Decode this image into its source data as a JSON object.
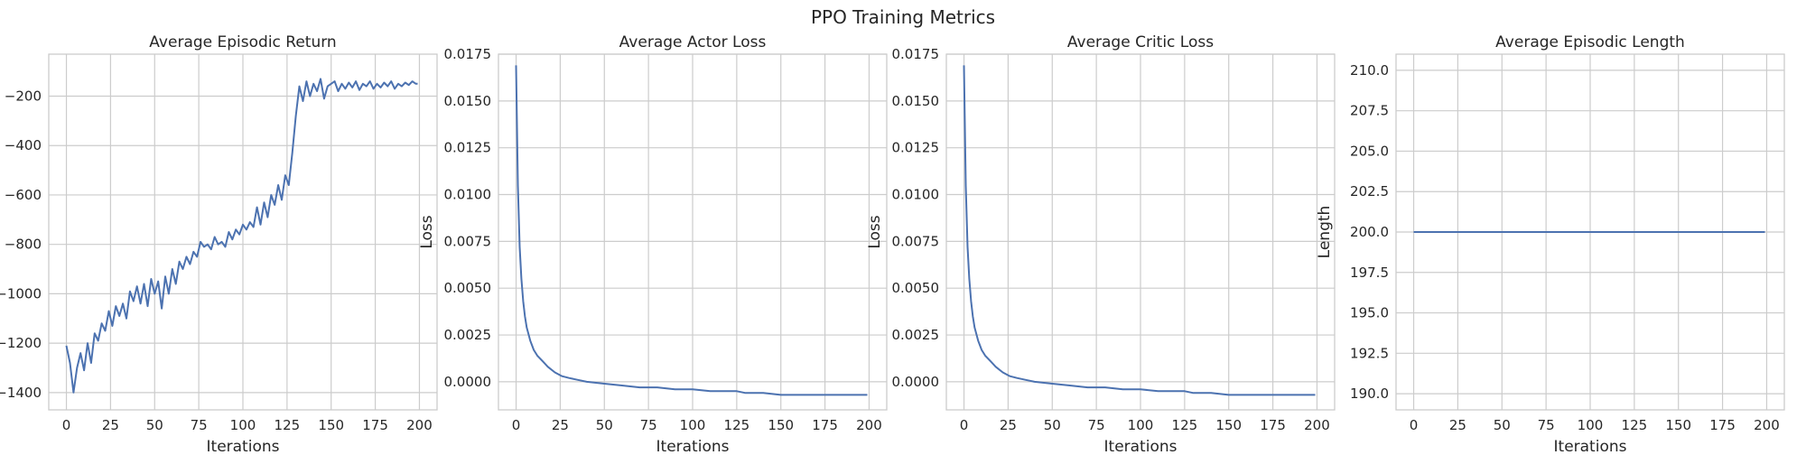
{
  "chart_data": {
    "title": "PPO Training Metrics",
    "charts": [
      {
        "type": "line",
        "title": "Average Episodic Return",
        "xlabel": "Iterations",
        "ylabel": "",
        "xlim": [
          -10,
          210
        ],
        "ylim": [
          -1470,
          -30
        ],
        "xticks": [
          0,
          25,
          50,
          75,
          100,
          125,
          150,
          175,
          200
        ],
        "yticks": [
          -1400,
          -1200,
          -1000,
          -800,
          -600,
          -400,
          -200
        ],
        "ytick_labels": [
          "-1400",
          "-1200",
          "-1000",
          "-800",
          "-600",
          "-400",
          "-200"
        ],
        "grid": true,
        "series": [
          {
            "name": "",
            "color": "#4c72b0",
            "x": [
              0,
              2,
              4,
              6,
              8,
              10,
              12,
              14,
              16,
              18,
              20,
              22,
              24,
              26,
              28,
              30,
              32,
              34,
              36,
              38,
              40,
              42,
              44,
              46,
              48,
              50,
              52,
              54,
              56,
              58,
              60,
              62,
              64,
              66,
              68,
              70,
              72,
              74,
              76,
              78,
              80,
              82,
              84,
              86,
              88,
              90,
              92,
              94,
              96,
              98,
              100,
              102,
              104,
              106,
              108,
              110,
              112,
              114,
              116,
              118,
              120,
              122,
              124,
              126,
              128,
              130,
              132,
              134,
              136,
              138,
              140,
              142,
              144,
              146,
              148,
              150,
              152,
              154,
              156,
              158,
              160,
              162,
              164,
              166,
              168,
              170,
              172,
              174,
              176,
              178,
              180,
              182,
              184,
              186,
              188,
              190,
              192,
              194,
              196,
              198,
              199
            ],
            "y": [
              -1210,
              -1280,
              -1400,
              -1300,
              -1240,
              -1310,
              -1200,
              -1280,
              -1160,
              -1190,
              -1120,
              -1150,
              -1070,
              -1130,
              -1050,
              -1090,
              -1040,
              -1100,
              -990,
              -1030,
              -970,
              -1040,
              -960,
              -1050,
              -940,
              -1000,
              -950,
              -1060,
              -930,
              -1000,
              -900,
              -960,
              -870,
              -900,
              -850,
              -880,
              -830,
              -850,
              -790,
              -810,
              -800,
              -820,
              -770,
              -800,
              -790,
              -810,
              -750,
              -780,
              -740,
              -760,
              -720,
              -740,
              -710,
              -730,
              -650,
              -720,
              -630,
              -690,
              -600,
              -640,
              -560,
              -620,
              -520,
              -560,
              -430,
              -280,
              -160,
              -220,
              -140,
              -200,
              -150,
              -180,
              -130,
              -210,
              -160,
              -150,
              -140,
              -180,
              -150,
              -170,
              -145,
              -165,
              -140,
              -175,
              -150,
              -160,
              -140,
              -170,
              -150,
              -165,
              -145,
              -160,
              -140,
              -170,
              -150,
              -160,
              -145,
              -155,
              -140,
              -150,
              -150
            ]
          }
        ]
      },
      {
        "type": "line",
        "title": "Average Actor Loss",
        "xlabel": "Iterations",
        "ylabel": "Loss",
        "xlim": [
          -10,
          210
        ],
        "ylim": [
          -0.0015,
          0.0175
        ],
        "xticks": [
          0,
          25,
          50,
          75,
          100,
          125,
          150,
          175,
          200
        ],
        "yticks": [
          0,
          0.0025,
          0.005,
          0.0075,
          0.01,
          0.0125,
          0.015,
          0.0175
        ],
        "ytick_labels": [
          "0.0000",
          "0.0025",
          "0.0050",
          "0.0075",
          "0.0100",
          "0.0125",
          "0.0150",
          "0.0175"
        ],
        "grid": true,
        "series": [
          {
            "name": "",
            "color": "#4c72b0",
            "x": [
              0,
              1,
              2,
              3,
              4,
              5,
              6,
              8,
              10,
              12,
              15,
              18,
              22,
              26,
              30,
              35,
              40,
              50,
              60,
              70,
              80,
              90,
              100,
              110,
              120,
              125,
              130,
              140,
              150,
              160,
              170,
              180,
              190,
              199
            ],
            "y": [
              0.0169,
              0.0105,
              0.0072,
              0.0055,
              0.0043,
              0.0035,
              0.0029,
              0.0022,
              0.0017,
              0.0014,
              0.0011,
              0.0008,
              0.0005,
              0.0003,
              0.0002,
              0.0001,
              0.0,
              -0.0001,
              -0.0002,
              -0.0003,
              -0.0003,
              -0.0004,
              -0.0004,
              -0.0005,
              -0.0005,
              -0.0005,
              -0.0006,
              -0.0006,
              -0.0007,
              -0.0007,
              -0.0007,
              -0.0007,
              -0.0007,
              -0.0007
            ]
          }
        ]
      },
      {
        "type": "line",
        "title": "Average Critic Loss",
        "xlabel": "Iterations",
        "ylabel": "Loss",
        "xlim": [
          -10,
          210
        ],
        "ylim": [
          -0.0015,
          0.0175
        ],
        "xticks": [
          0,
          25,
          50,
          75,
          100,
          125,
          150,
          175,
          200
        ],
        "yticks": [
          0,
          0.0025,
          0.005,
          0.0075,
          0.01,
          0.0125,
          0.015,
          0.0175
        ],
        "ytick_labels": [
          "0.0000",
          "0.0025",
          "0.0050",
          "0.0075",
          "0.0100",
          "0.0125",
          "0.0150",
          "0.0175"
        ],
        "grid": true,
        "series": [
          {
            "name": "",
            "color": "#4c72b0",
            "x": [
              0,
              1,
              2,
              3,
              4,
              5,
              6,
              8,
              10,
              12,
              15,
              18,
              22,
              26,
              30,
              35,
              40,
              50,
              60,
              70,
              80,
              90,
              100,
              110,
              120,
              125,
              130,
              140,
              150,
              160,
              170,
              180,
              190,
              199
            ],
            "y": [
              0.0169,
              0.0105,
              0.0072,
              0.0055,
              0.0043,
              0.0035,
              0.0029,
              0.0022,
              0.0017,
              0.0014,
              0.0011,
              0.0008,
              0.0005,
              0.0003,
              0.0002,
              0.0001,
              0.0,
              -0.0001,
              -0.0002,
              -0.0003,
              -0.0003,
              -0.0004,
              -0.0004,
              -0.0005,
              -0.0005,
              -0.0005,
              -0.0006,
              -0.0006,
              -0.0007,
              -0.0007,
              -0.0007,
              -0.0007,
              -0.0007,
              -0.0007
            ]
          }
        ]
      },
      {
        "type": "line",
        "title": "Average Episodic Length",
        "xlabel": "Iterations",
        "ylabel": "Length",
        "xlim": [
          -10,
          210
        ],
        "ylim": [
          189,
          211
        ],
        "xticks": [
          0,
          25,
          50,
          75,
          100,
          125,
          150,
          175,
          200
        ],
        "yticks": [
          190,
          192.5,
          195,
          197.5,
          200,
          202.5,
          205,
          207.5,
          210
        ],
        "ytick_labels": [
          "190.0",
          "192.5",
          "195.0",
          "197.5",
          "200.0",
          "202.5",
          "205.0",
          "207.5",
          "210.0"
        ],
        "grid": true,
        "series": [
          {
            "name": "",
            "color": "#4c72b0",
            "x": [
              0,
              199
            ],
            "y": [
              200,
              200
            ]
          }
        ]
      }
    ]
  }
}
